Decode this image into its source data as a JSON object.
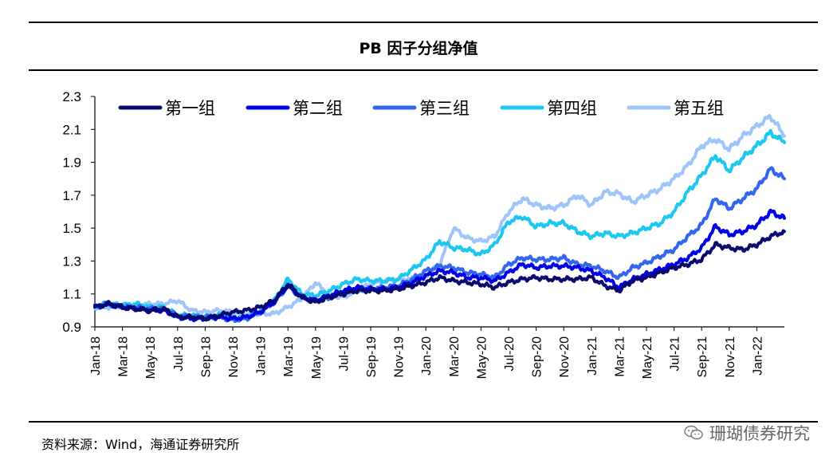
{
  "title": "PB 因子分组净值",
  "source": "资料来源：Wind，海通证券研究所",
  "watermark": "珊瑚债券研究",
  "icons": {
    "watermark": "wechat-icon"
  },
  "chart_data": {
    "type": "line",
    "title": "PB 因子分组净值",
    "xlabel": "",
    "ylabel": "",
    "ylim": [
      0.9,
      2.3
    ],
    "yticks": [
      "0.9",
      "1.1",
      "1.3",
      "1.5",
      "1.7",
      "1.9",
      "2.1",
      "2.3"
    ],
    "xticks": [
      "Jan-18",
      "Mar-18",
      "May-18",
      "Jul-18",
      "Sep-18",
      "Nov-18",
      "Jan-19",
      "Mar-19",
      "May-19",
      "Jul-19",
      "Sep-19",
      "Nov-19",
      "Jan-20",
      "Mar-20",
      "May-20",
      "Jul-20",
      "Sep-20",
      "Nov-20",
      "Jan-21",
      "Mar-21",
      "May-21",
      "Jul-21",
      "Sep-21",
      "Nov-21",
      "Jan-22"
    ],
    "x_months": [
      0,
      1,
      2,
      3,
      4,
      5,
      6,
      7,
      8,
      9,
      10,
      11,
      12,
      13,
      14,
      15,
      16,
      17,
      18,
      19,
      20,
      21,
      22,
      23,
      24,
      25,
      26,
      27,
      28,
      29,
      30,
      31,
      32,
      33,
      34,
      35,
      36,
      37,
      38,
      39,
      40,
      41,
      42,
      43,
      44,
      45,
      46,
      47,
      48,
      49,
      50
    ],
    "legend_position": "top",
    "series": [
      {
        "name": "第一组",
        "color": "#0a0a6e",
        "values": [
          1.02,
          1.04,
          1.02,
          1.01,
          1.0,
          1.01,
          0.96,
          0.96,
          0.95,
          0.97,
          0.99,
          1.0,
          1.02,
          1.06,
          1.16,
          1.08,
          1.05,
          1.08,
          1.1,
          1.12,
          1.12,
          1.12,
          1.13,
          1.15,
          1.17,
          1.2,
          1.18,
          1.17,
          1.16,
          1.14,
          1.17,
          1.19,
          1.2,
          1.19,
          1.19,
          1.19,
          1.2,
          1.15,
          1.12,
          1.18,
          1.2,
          1.23,
          1.26,
          1.28,
          1.31,
          1.4,
          1.38,
          1.37,
          1.4,
          1.45,
          1.48
        ]
      },
      {
        "name": "第二组",
        "color": "#0000e6",
        "values": [
          1.02,
          1.04,
          1.02,
          1.01,
          1.0,
          1.0,
          0.96,
          0.95,
          0.95,
          0.96,
          0.95,
          0.96,
          0.99,
          1.05,
          1.15,
          1.08,
          1.06,
          1.09,
          1.12,
          1.14,
          1.13,
          1.13,
          1.14,
          1.17,
          1.21,
          1.24,
          1.23,
          1.2,
          1.2,
          1.18,
          1.23,
          1.28,
          1.26,
          1.27,
          1.27,
          1.26,
          1.24,
          1.2,
          1.14,
          1.19,
          1.22,
          1.25,
          1.28,
          1.32,
          1.38,
          1.51,
          1.46,
          1.48,
          1.52,
          1.6,
          1.56
        ]
      },
      {
        "name": "第三组",
        "color": "#3366ee",
        "values": [
          1.02,
          1.04,
          1.02,
          1.02,
          1.01,
          1.01,
          0.97,
          0.96,
          0.96,
          0.96,
          0.94,
          0.95,
          0.99,
          1.05,
          1.15,
          1.08,
          1.06,
          1.08,
          1.11,
          1.13,
          1.13,
          1.14,
          1.15,
          1.19,
          1.24,
          1.27,
          1.26,
          1.23,
          1.22,
          1.2,
          1.28,
          1.32,
          1.31,
          1.31,
          1.32,
          1.28,
          1.27,
          1.24,
          1.2,
          1.26,
          1.29,
          1.33,
          1.37,
          1.45,
          1.52,
          1.68,
          1.62,
          1.68,
          1.74,
          1.86,
          1.8
        ]
      },
      {
        "name": "第四组",
        "color": "#1cc8f0",
        "values": [
          1.03,
          1.04,
          1.03,
          1.04,
          1.02,
          1.02,
          0.97,
          0.97,
          0.96,
          0.97,
          0.95,
          0.96,
          1.0,
          1.06,
          1.19,
          1.1,
          1.09,
          1.12,
          1.16,
          1.19,
          1.18,
          1.18,
          1.19,
          1.25,
          1.31,
          1.42,
          1.38,
          1.37,
          1.34,
          1.4,
          1.54,
          1.57,
          1.51,
          1.53,
          1.53,
          1.48,
          1.45,
          1.47,
          1.45,
          1.47,
          1.5,
          1.53,
          1.6,
          1.72,
          1.82,
          1.94,
          1.85,
          1.93,
          2.0,
          2.08,
          2.02
        ]
      },
      {
        "name": "第五组",
        "color": "#9ec5fa",
        "values": [
          1.02,
          1.02,
          1.03,
          1.03,
          1.04,
          1.04,
          1.06,
          1.0,
          0.99,
          1.0,
          0.99,
          0.98,
          0.98,
          0.98,
          1.02,
          1.07,
          1.17,
          1.09,
          1.08,
          1.12,
          1.16,
          1.18,
          1.19,
          1.19,
          1.21,
          1.28,
          1.5,
          1.44,
          1.42,
          1.45,
          1.6,
          1.68,
          1.64,
          1.62,
          1.64,
          1.7,
          1.64,
          1.72,
          1.71,
          1.66,
          1.7,
          1.74,
          1.8,
          1.88,
          2.0,
          2.04,
          1.98,
          2.06,
          2.12,
          2.18,
          2.06
        ]
      }
    ]
  }
}
